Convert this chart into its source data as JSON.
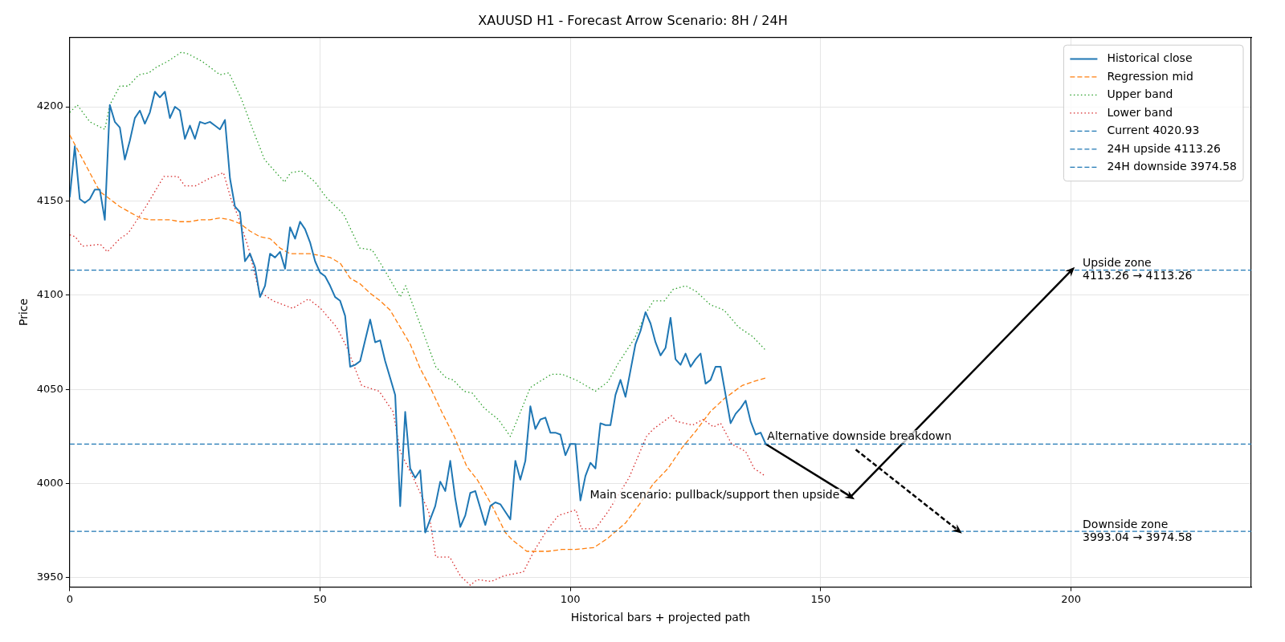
{
  "chart_data": {
    "type": "line",
    "title": "XAUUSD H1 - Forecast Arrow Scenario: 8H / 24H",
    "xlabel": "Historical bars + projected path",
    "ylabel": "Price",
    "xlim": [
      0,
      236
    ],
    "ylim": [
      3945,
      4237
    ],
    "xticks": [
      0,
      50,
      100,
      150,
      200
    ],
    "yticks": [
      3950,
      4000,
      4050,
      4100,
      4150,
      4200
    ],
    "grid": true,
    "legend": "top right",
    "series": [
      {
        "name": "Historical close",
        "color": "#1f77b4",
        "line_style": "solid",
        "x": [
          0,
          1,
          2,
          3,
          4,
          5,
          6,
          7,
          8,
          9,
          10,
          11,
          12,
          13,
          14,
          15,
          16,
          17,
          18,
          19,
          20,
          21,
          22,
          23,
          24,
          25,
          26,
          27,
          28,
          29,
          30,
          31,
          32,
          33,
          34,
          35,
          36,
          37,
          38,
          39,
          40,
          41,
          42,
          43,
          44,
          45,
          46,
          47,
          48,
          49,
          50,
          51,
          52,
          53,
          54,
          55,
          56,
          57,
          58,
          59,
          60,
          61,
          62,
          63,
          64,
          65,
          66,
          67,
          68,
          69,
          70,
          71,
          72,
          73,
          74,
          75,
          76,
          77,
          78,
          79,
          80,
          81,
          82,
          83,
          84,
          85,
          86,
          87,
          88,
          89,
          90,
          91,
          92,
          93,
          94,
          95,
          96,
          97,
          98,
          99,
          100,
          101,
          102,
          103,
          104,
          105,
          106,
          107,
          108,
          109,
          110,
          111,
          112,
          113,
          114,
          115,
          116,
          117,
          118,
          119,
          120,
          121,
          122,
          123,
          124,
          125,
          126,
          127,
          128,
          129,
          130,
          131,
          132,
          133,
          134,
          135,
          136,
          137,
          138,
          139
        ],
        "values": [
          4152,
          4179,
          4151,
          4149,
          4151,
          4156,
          4156,
          4140,
          4201,
          4192,
          4189,
          4172,
          4182,
          4194,
          4198,
          4191,
          4197,
          4208,
          4205,
          4208,
          4194,
          4200,
          4198,
          4183,
          4190,
          4183,
          4192,
          4191,
          4192,
          4190,
          4188,
          4193,
          4162,
          4147,
          4144,
          4118,
          4122,
          4115,
          4099,
          4105,
          4122,
          4120,
          4123,
          4114,
          4136,
          4130,
          4139,
          4135,
          4128,
          4118,
          4112,
          4110,
          4105,
          4099,
          4097,
          4089,
          4062,
          4063,
          4065,
          4076,
          4087,
          4075,
          4076,
          4065,
          4056,
          4047,
          3988,
          4038,
          4008,
          4003,
          4007,
          3974,
          3981,
          3988,
          4001,
          3996,
          4012,
          3992,
          3977,
          3983,
          3995,
          3996,
          3987,
          3978,
          3988,
          3990,
          3989,
          3985,
          3981,
          4012,
          4002,
          4012,
          4041,
          4029,
          4034,
          4035,
          4027,
          4027,
          4026,
          4015,
          4021,
          4021,
          3991,
          4004,
          4011,
          4008,
          4032,
          4031,
          4031,
          4047,
          4055,
          4046,
          4060,
          4074,
          4081,
          4091,
          4085,
          4075,
          4068,
          4072,
          4088,
          4066,
          4063,
          4069,
          4062,
          4066,
          4069,
          4053,
          4055,
          4062,
          4062,
          4047,
          4032,
          4037,
          4040,
          4044,
          4033,
          4026,
          4027,
          4021
        ]
      },
      {
        "name": "Regression mid",
        "color": "#ff7f0e",
        "line_style": "dashed",
        "x": [
          0,
          2,
          4,
          6,
          8,
          10,
          12,
          14,
          16,
          18,
          20,
          22,
          24,
          26,
          28,
          30,
          32,
          34,
          36,
          38,
          40,
          42,
          44,
          46,
          48,
          50,
          52,
          54,
          56,
          58,
          60,
          62,
          64,
          66,
          68,
          70,
          72,
          74.3,
          76.8,
          79.3,
          81.4,
          84.2,
          87,
          88.4,
          91.3,
          95.5,
          98.3,
          101,
          104.7,
          107.5,
          111,
          113.8,
          116.6,
          119.5,
          122.3,
          125.1,
          127.9,
          130.7,
          134.3,
          136.4,
          139
        ],
        "values": [
          4185,
          4175,
          4165,
          4155,
          4151,
          4147,
          4144,
          4141,
          4140,
          4140,
          4140,
          4139,
          4139,
          4140,
          4140,
          4141,
          4140,
          4138,
          4134,
          4131,
          4130,
          4125,
          4122,
          4122,
          4122,
          4121,
          4120,
          4117,
          4109,
          4106,
          4101,
          4097,
          4092,
          4083,
          4074,
          4061,
          4051,
          4038,
          4025,
          4009,
          4002,
          3989,
          3974,
          3970,
          3964,
          3964,
          3965,
          3965,
          3966,
          3971,
          3979,
          3989,
          4000,
          4008,
          4019,
          4028,
          4038,
          4045,
          4052,
          4054,
          4056
        ]
      },
      {
        "name": "Upper band",
        "color": "#2ca02c",
        "line_style": "dotted",
        "x": [
          0,
          1.5,
          4,
          7,
          8,
          10,
          11.7,
          13.8,
          15.8,
          17.3,
          19.5,
          22.3,
          23.7,
          26.5,
          30,
          31.8,
          34.3,
          36.4,
          38.9,
          42.9,
          44.1,
          46.3,
          49,
          51.2,
          54.7,
          57.9,
          60.4,
          62.5,
          66,
          67.1,
          70.2,
          73.1,
          75.2,
          76.6,
          78.7,
          80.4,
          82.8,
          85.6,
          88,
          89.1,
          92,
          96.2,
          98.3,
          101.1,
          105,
          107.5,
          109.6,
          112.8,
          115.2,
          116.6,
          118.8,
          120.5,
          123,
          125.1,
          127.9,
          130.7,
          133.6,
          136.4,
          138.9
        ],
        "values": [
          4197,
          4201,
          4192,
          4188,
          4201,
          4211,
          4211,
          4217,
          4218,
          4221,
          4224,
          4229,
          4228,
          4224,
          4217,
          4218,
          4204,
          4189,
          4172,
          4160,
          4165,
          4166,
          4160,
          4152,
          4143,
          4125,
          4124,
          4115,
          4099,
          4105,
          4083,
          4062,
          4056,
          4055,
          4049,
          4048,
          4040,
          4034,
          4025,
          4032,
          4051,
          4058,
          4058,
          4055,
          4049,
          4054,
          4064,
          4077,
          4091,
          4097,
          4097,
          4103,
          4105,
          4102,
          4095,
          4092,
          4083,
          4078,
          4071
        ]
      },
      {
        "name": "Lower band",
        "color": "#d62728",
        "line_style": "dotted",
        "x": [
          0,
          1.1,
          2.5,
          6.1,
          7.5,
          10,
          11.7,
          15.2,
          18.8,
          21.6,
          23,
          25.1,
          27.9,
          30.7,
          32.2,
          33.6,
          35.7,
          37.8,
          40.6,
          44.5,
          47.7,
          50.1,
          53.3,
          55.4,
          58.3,
          61.8,
          64.6,
          66,
          68.8,
          71.7,
          73.1,
          75.9,
          78,
          80,
          81.4,
          84.2,
          86.7,
          90.6,
          92.7,
          95.5,
          97.6,
          101.1,
          102.2,
          105,
          107.5,
          111.7,
          115.2,
          116.6,
          120.2,
          121.2,
          124.4,
          126.5,
          128.6,
          130,
          132.2,
          135,
          136.7,
          138.9
        ],
        "values": [
          4132,
          4131,
          4126,
          4127,
          4123,
          4130,
          4133,
          4147,
          4163,
          4163,
          4158,
          4158,
          4162,
          4165,
          4151,
          4142,
          4125,
          4102,
          4097,
          4093,
          4098,
          4093,
          4083,
          4072,
          4052,
          4049,
          4038,
          4017,
          4002,
          3985,
          3961,
          3961,
          3951,
          3946,
          3949,
          3948,
          3951,
          3953,
          3964,
          3976,
          3983,
          3986,
          3976,
          3976,
          3985,
          4003,
          4025,
          4029,
          4036,
          4033,
          4031,
          4034,
          4030,
          4032,
          4021,
          4017,
          4008,
          4004
        ]
      },
      {
        "color": "#000000",
        "line_style": "solid",
        "x": [
          139,
          156,
          200
        ],
        "values": [
          4021,
          3993,
          4113
        ]
      },
      {
        "color": "#000000",
        "line_style": "dashed",
        "x": [
          157,
          177.5
        ],
        "values": [
          4018,
          3975
        ]
      }
    ],
    "ref_lines": [
      {
        "axis": "y",
        "value": 4020.93,
        "label": "Current 4020.93",
        "color": "#1f77b4",
        "line_style": "dashed"
      },
      {
        "axis": "y",
        "value": 4113.26,
        "label": "24H upside 4113.26",
        "color": "#1f77b4",
        "line_style": "dashed"
      },
      {
        "axis": "y",
        "value": 3974.58,
        "label": "24H downside 3974.58",
        "color": "#1f77b4",
        "line_style": "dashed"
      }
    ],
    "annotations": [
      {
        "text": "Upside zone\n4113.26 → 4113.26",
        "x": 202,
        "y": 4113.26
      },
      {
        "text": "Downside zone\n3993.04 → 3974.58",
        "x": 202,
        "y": 3974.58
      },
      {
        "text": "Alternative downside breakdown",
        "x": 139,
        "y": 4021
      },
      {
        "text": "Main scenario: pullback/support then upside",
        "x": 156,
        "y": 3993
      }
    ]
  }
}
